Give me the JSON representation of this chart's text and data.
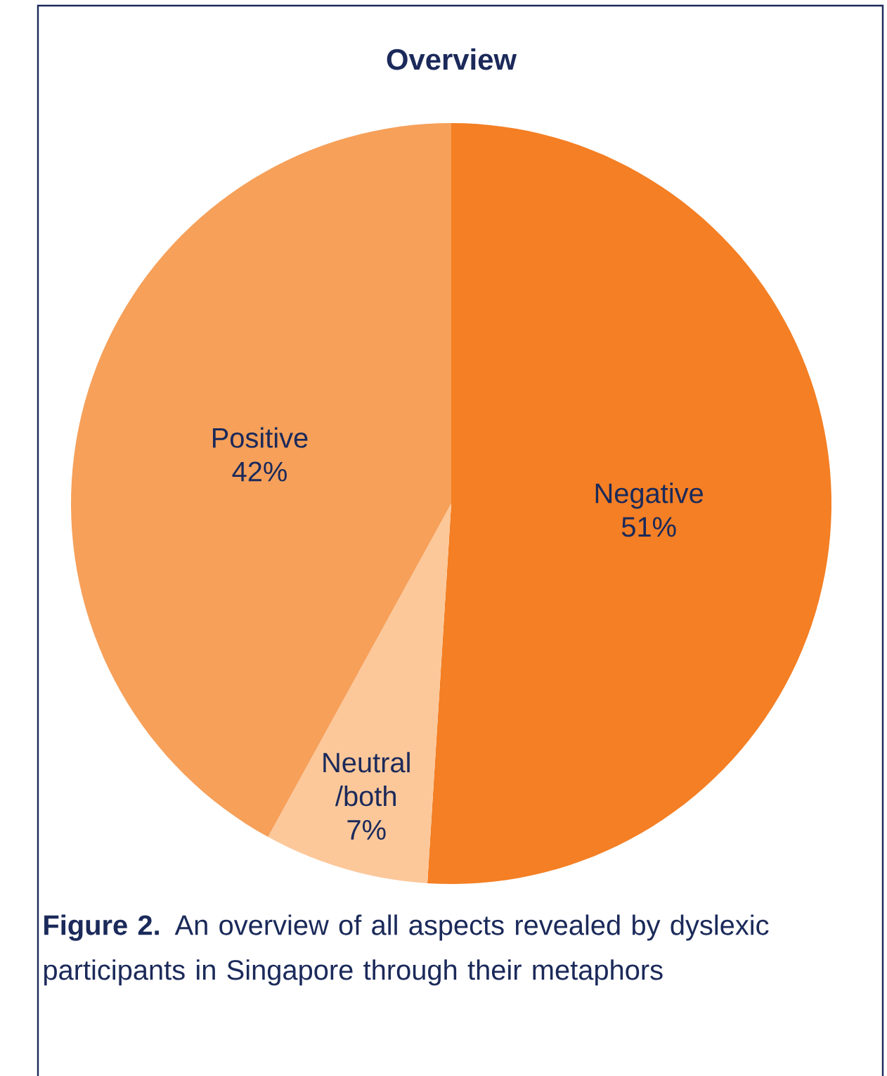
{
  "chart_data": {
    "type": "pie",
    "title": "Overview",
    "categories": [
      "Negative",
      "Neutral /both",
      "Positive"
    ],
    "values": [
      51,
      7,
      42
    ],
    "colors": [
      "#f47f24",
      "#fcc89a",
      "#f6a05a"
    ],
    "value_labels": [
      "51%",
      "7%",
      "42%"
    ],
    "annotations": [
      "**Figure 2.** An overview of all aspects revealed by dyslexic participants in Singapore through their metaphors"
    ]
  }
}
